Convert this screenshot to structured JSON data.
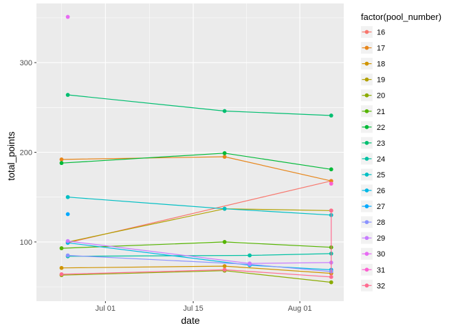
{
  "chart_data": {
    "type": "line",
    "title": "",
    "xlabel": "date",
    "ylabel": "total_points",
    "legend_title": "factor(pool_number)",
    "legend_position": "right",
    "grid": true,
    "xlim": [
      "2020-06-20",
      "2020-08-08"
    ],
    "ylim": [
      34,
      366
    ],
    "x_ticks": [
      {
        "date": "2020-07-01",
        "label": "Jul 01"
      },
      {
        "date": "2020-07-15",
        "label": "Jul 15"
      },
      {
        "date": "2020-08-01",
        "label": "Aug 01"
      }
    ],
    "y_ticks": [
      100,
      200,
      300
    ],
    "series": [
      {
        "name": "16",
        "color": "#F8766D",
        "points": [
          {
            "x": "2020-06-25",
            "y": 99
          },
          {
            "x": "2020-08-06",
            "y": 168
          }
        ]
      },
      {
        "name": "17",
        "color": "#E7861B",
        "points": [
          {
            "x": "2020-06-24",
            "y": 192
          },
          {
            "x": "2020-07-20",
            "y": 195
          },
          {
            "x": "2020-08-06",
            "y": 168
          }
        ]
      },
      {
        "name": "18",
        "color": "#D09400",
        "points": [
          {
            "x": "2020-06-24",
            "y": 71
          },
          {
            "x": "2020-07-20",
            "y": 73
          },
          {
            "x": "2020-08-06",
            "y": 65
          }
        ]
      },
      {
        "name": "19",
        "color": "#B2A100",
        "points": [
          {
            "x": "2020-06-25",
            "y": 100
          },
          {
            "x": "2020-07-20",
            "y": 137
          },
          {
            "x": "2020-08-06",
            "y": 135
          }
        ]
      },
      {
        "name": "20",
        "color": "#8BAB00",
        "points": [
          {
            "x": "2020-06-24",
            "y": 63
          },
          {
            "x": "2020-07-20",
            "y": 68
          },
          {
            "x": "2020-08-06",
            "y": 55
          }
        ]
      },
      {
        "name": "21",
        "color": "#55B400",
        "points": [
          {
            "x": "2020-06-24",
            "y": 93
          },
          {
            "x": "2020-07-20",
            "y": 100
          },
          {
            "x": "2020-08-06",
            "y": 94
          }
        ]
      },
      {
        "name": "22",
        "color": "#00BA38",
        "points": [
          {
            "x": "2020-06-24",
            "y": 188
          },
          {
            "x": "2020-07-20",
            "y": 199
          },
          {
            "x": "2020-08-06",
            "y": 181
          }
        ]
      },
      {
        "name": "23",
        "color": "#00BE70",
        "points": [
          {
            "x": "2020-06-25",
            "y": 264
          },
          {
            "x": "2020-07-20",
            "y": 246
          },
          {
            "x": "2020-08-06",
            "y": 241
          }
        ]
      },
      {
        "name": "24",
        "color": "#00C1A3",
        "points": [
          {
            "x": "2020-06-25",
            "y": 84
          },
          {
            "x": "2020-07-24",
            "y": 85
          },
          {
            "x": "2020-08-06",
            "y": 87
          }
        ]
      },
      {
        "name": "25",
        "color": "#00BFC4",
        "points": [
          {
            "x": "2020-06-25",
            "y": 150
          },
          {
            "x": "2020-07-20",
            "y": 137
          },
          {
            "x": "2020-08-06",
            "y": 130
          }
        ]
      },
      {
        "name": "26",
        "color": "#00B8E5",
        "points": [
          {
            "x": "2020-06-25",
            "y": 99
          },
          {
            "x": "2020-07-24",
            "y": 74
          },
          {
            "x": "2020-08-06",
            "y": 69
          }
        ]
      },
      {
        "name": "27",
        "color": "#00A9FF",
        "points": [
          {
            "x": "2020-06-25",
            "y": 131
          }
        ]
      },
      {
        "name": "28",
        "color": "#8B93FF",
        "points": [
          {
            "x": "2020-06-25",
            "y": 85
          },
          {
            "x": "2020-07-24",
            "y": 75
          },
          {
            "x": "2020-08-06",
            "y": 67
          }
        ]
      },
      {
        "name": "29",
        "color": "#C77CFF",
        "points": [
          {
            "x": "2020-06-25",
            "y": 101
          },
          {
            "x": "2020-07-24",
            "y": 76
          },
          {
            "x": "2020-08-06",
            "y": 77
          }
        ]
      },
      {
        "name": "30",
        "color": "#E76BF3",
        "points": [
          {
            "x": "2020-06-25",
            "y": 351
          }
        ]
      },
      {
        "name": "31",
        "color": "#FD61D1",
        "points": [
          {
            "x": "2020-08-06",
            "y": 165
          }
        ]
      },
      {
        "name": "32",
        "color": "#FF6C91",
        "points": [
          {
            "x": "2020-06-24",
            "y": 64
          },
          {
            "x": "2020-07-20",
            "y": 69
          },
          {
            "x": "2020-08-06",
            "y": 61
          },
          {
            "x": "2020-08-06",
            "y": 135
          }
        ]
      }
    ]
  }
}
